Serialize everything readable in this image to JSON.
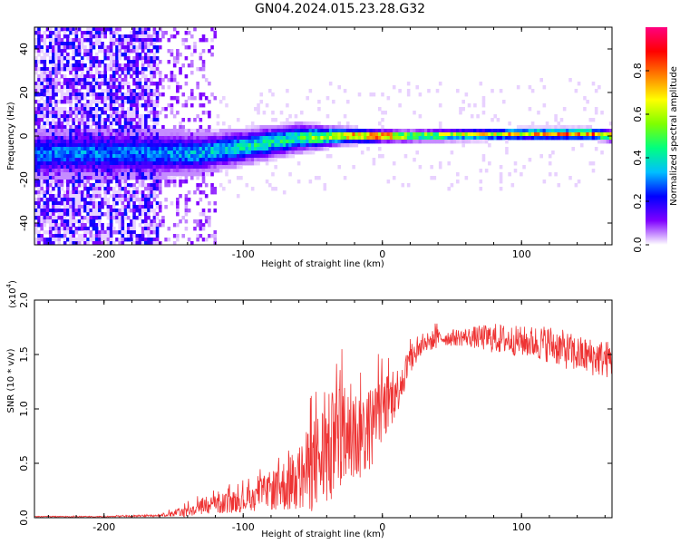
{
  "title": "GN04.2024.015.23.28.G32",
  "chart_data": [
    {
      "type": "heatmap",
      "xlabel": "Height of straight line (km)",
      "ylabel": "Frequency (Hz)",
      "xlim": [
        -250,
        165
      ],
      "ylim": [
        -50,
        50
      ],
      "xticks": [
        -200,
        -100,
        0,
        100
      ],
      "yticks": [
        -40,
        -20,
        0,
        20,
        40
      ],
      "colorbar": {
        "label": "Normalized spectral amplitude",
        "range": [
          0,
          1
        ],
        "ticks": [
          "0.0",
          "0.2",
          "0.4",
          "0.6",
          "0.8"
        ],
        "colors": [
          "#ffffff",
          "#7f00ff",
          "#0000ff",
          "#00bfff",
          "#00ff80",
          "#7fff00",
          "#ffff00",
          "#ff8000",
          "#ff0000",
          "#ff0080"
        ]
      },
      "noise_region_x": [
        -250,
        -160
      ],
      "signal_band": [
        {
          "x": -155,
          "center": -8,
          "halfwidth": 8,
          "peak": 0.3
        },
        {
          "x": -130,
          "center": -8,
          "halfwidth": 7,
          "peak": 0.35
        },
        {
          "x": -100,
          "center": -5,
          "halfwidth": 6,
          "peak": 0.4
        },
        {
          "x": -60,
          "center": -1,
          "halfwidth": 5,
          "peak": 0.45
        },
        {
          "x": -30,
          "center": 0,
          "halfwidth": 3,
          "peak": 0.7
        },
        {
          "x": 0,
          "center": 0,
          "halfwidth": 2,
          "peak": 0.95
        },
        {
          "x": 20,
          "center": 0,
          "halfwidth": 2,
          "peak": 0.6
        },
        {
          "x": 100,
          "center": 1,
          "halfwidth": 2,
          "peak": 0.7
        },
        {
          "x": 150,
          "center": 1,
          "halfwidth": 2,
          "peak": 0.8
        },
        {
          "x": 165,
          "center": 0,
          "halfwidth": 2,
          "peak": 0.75
        }
      ]
    },
    {
      "type": "line",
      "xlabel": "Height of straight line (km)",
      "ylabel": "SNR (10 * v/v)",
      "yscale_label": "(x10",
      "yscale_exp": "4",
      "xlim": [
        -250,
        165
      ],
      "ylim": [
        0,
        2
      ],
      "xticks": [
        -200,
        -100,
        0,
        100
      ],
      "yticks": [
        "0.0",
        "0.5",
        "1.0",
        "1.5",
        "2.0"
      ],
      "color": "#ee3333",
      "series": [
        {
          "x": [
            -250,
            -200,
            -160,
            -140,
            -120,
            -100,
            -80,
            -60,
            -40,
            -30,
            -20,
            -10,
            0,
            10,
            20,
            30,
            40,
            60,
            80,
            100,
            120,
            140,
            165
          ],
          "y": [
            0.01,
            0.01,
            0.02,
            0.06,
            0.12,
            0.16,
            0.25,
            0.35,
            0.6,
            0.7,
            0.75,
            0.8,
            1.0,
            1.15,
            1.45,
            1.6,
            1.65,
            1.66,
            1.65,
            1.62,
            1.6,
            1.5,
            1.45
          ],
          "spread": [
            0.005,
            0.005,
            0.01,
            0.06,
            0.1,
            0.12,
            0.2,
            0.35,
            0.6,
            0.55,
            0.5,
            0.45,
            0.35,
            0.25,
            0.15,
            0.1,
            0.1,
            0.12,
            0.2,
            0.2,
            0.25,
            0.25,
            0.25
          ]
        }
      ]
    }
  ]
}
